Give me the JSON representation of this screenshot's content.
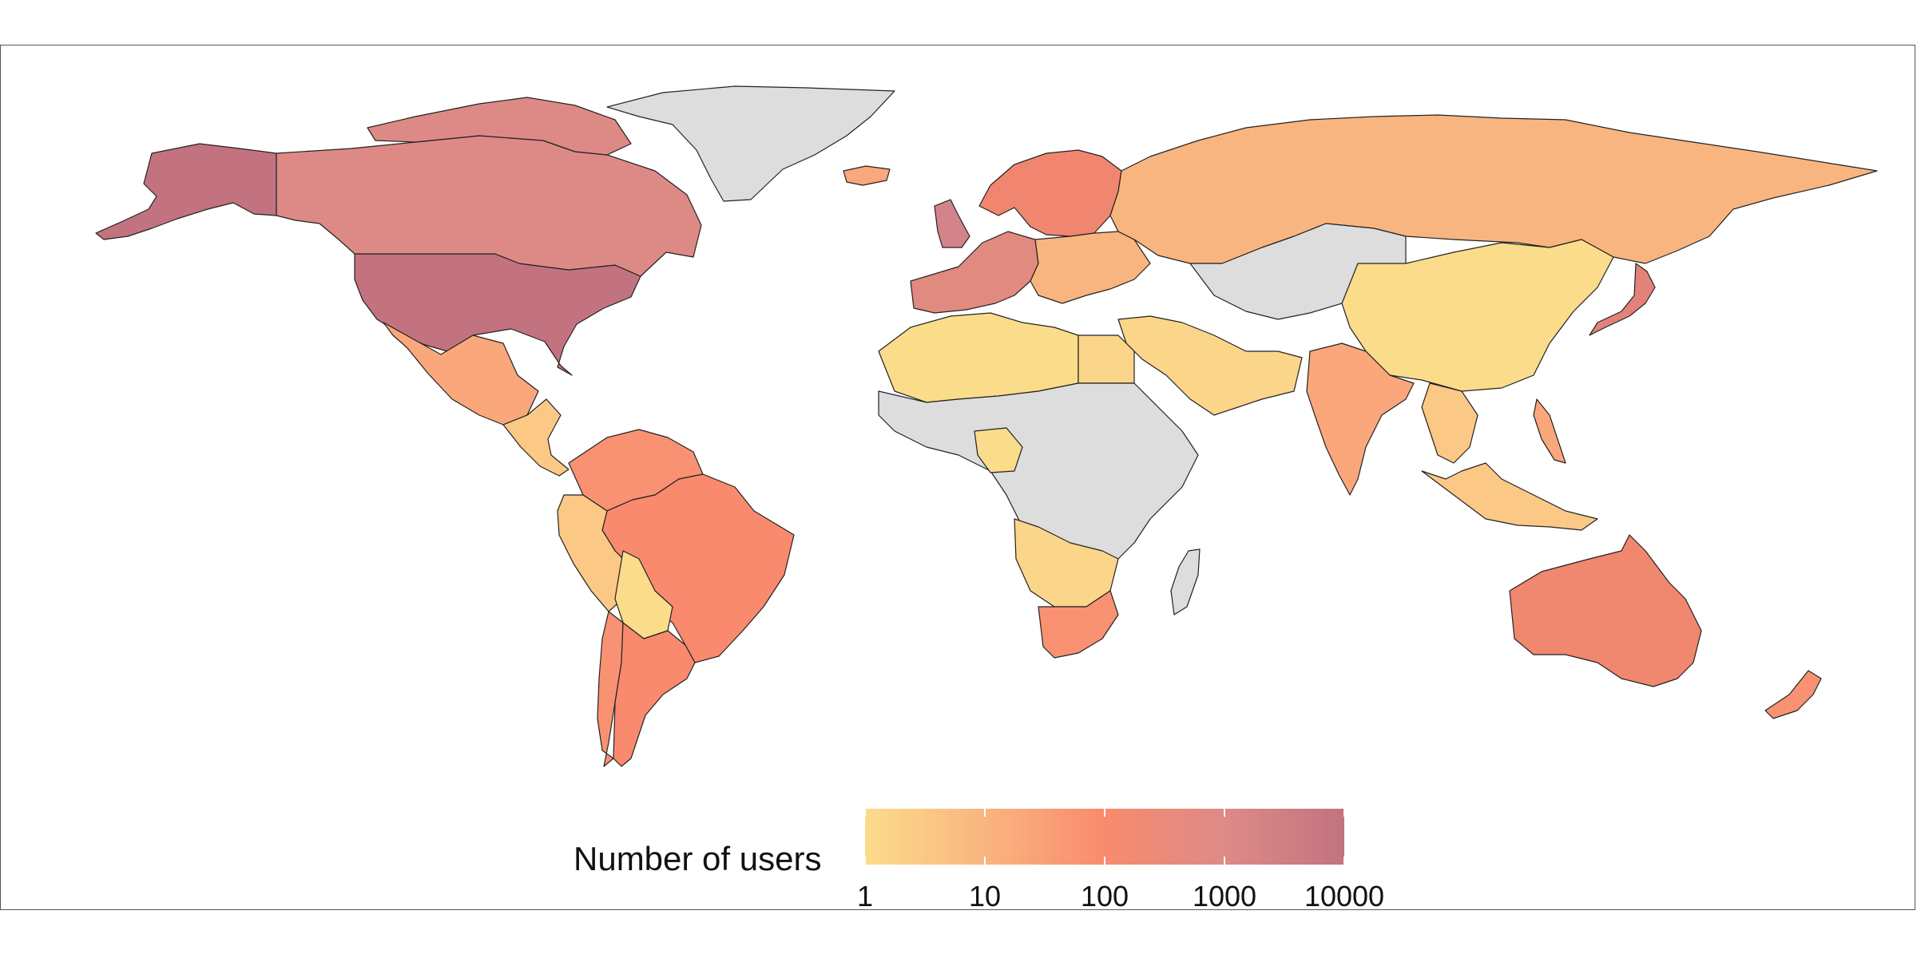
{
  "legend": {
    "title": "Number of users",
    "ticks": [
      "1",
      "10",
      "100",
      "1000",
      "10000"
    ],
    "scale": "log10",
    "range": [
      1,
      10000
    ],
    "colors": [
      "#fbdc8b",
      "#f9b57f",
      "#f98a6e",
      "#dd8a87",
      "#c2737f"
    ]
  },
  "map": {
    "no_data_color": "#dddddd",
    "border_color": "#222222",
    "regions": [
      {
        "name": "Alaska (USA)",
        "color": "#c2737f"
      },
      {
        "name": "United States",
        "color": "#c2737f"
      },
      {
        "name": "Canada",
        "color": "#dd8a87"
      },
      {
        "name": "Greenland",
        "color": "#dddddd"
      },
      {
        "name": "Mexico",
        "color": "#f9a77b"
      },
      {
        "name": "Central America",
        "color": "#fbc886"
      },
      {
        "name": "Colombia / Venezuela",
        "color": "#f99272"
      },
      {
        "name": "Brazil",
        "color": "#f98a6e"
      },
      {
        "name": "Peru",
        "color": "#fbc886"
      },
      {
        "name": "Bolivia",
        "color": "#fbdc8b"
      },
      {
        "name": "Chile",
        "color": "#f99272"
      },
      {
        "name": "Argentina",
        "color": "#f98a6e"
      },
      {
        "name": "Iceland",
        "color": "#f9a77b"
      },
      {
        "name": "United Kingdom",
        "color": "#d5838a"
      },
      {
        "name": "Western Europe",
        "color": "#e08a80"
      },
      {
        "name": "Scandinavia",
        "color": "#f0866f"
      },
      {
        "name": "Eastern Europe",
        "color": "#f9b57f"
      },
      {
        "name": "Russia",
        "color": "#f9b57f"
      },
      {
        "name": "Central Asia",
        "color": "#dddddd"
      },
      {
        "name": "China",
        "color": "#fbdc8b"
      },
      {
        "name": "India",
        "color": "#f9a77b"
      },
      {
        "name": "Middle East",
        "color": "#fbd589"
      },
      {
        "name": "Japan",
        "color": "#e4817a"
      },
      {
        "name": "Southeast Asia",
        "color": "#fbc886"
      },
      {
        "name": "Indonesia",
        "color": "#fbc886"
      },
      {
        "name": "Philippines",
        "color": "#f9a77b"
      },
      {
        "name": "Australia",
        "color": "#f0876f"
      },
      {
        "name": "New Zealand",
        "color": "#f99272"
      },
      {
        "name": "North Africa",
        "color": "#fbdc8b"
      },
      {
        "name": "Egypt",
        "color": "#fbd589"
      },
      {
        "name": "Central Africa",
        "color": "#dddddd"
      },
      {
        "name": "Nigeria",
        "color": "#fbdc8b"
      },
      {
        "name": "Southern Africa",
        "color": "#fbd589"
      },
      {
        "name": "South Africa",
        "color": "#f99272"
      },
      {
        "name": "Madagascar",
        "color": "#dddddd"
      }
    ]
  }
}
